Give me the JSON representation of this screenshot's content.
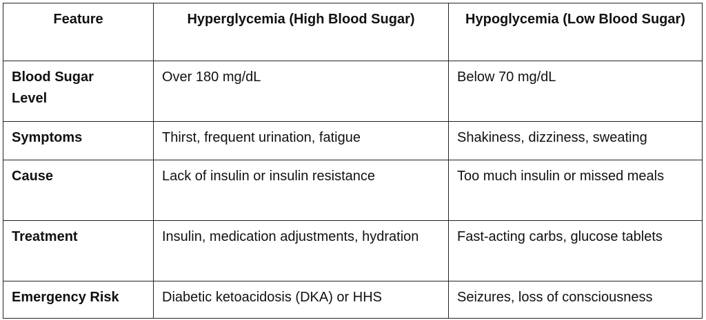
{
  "table": {
    "header": [
      "Feature",
      "Hyperglycemia (High Blood Sugar)",
      "Hypoglycemia (Low Blood Sugar)"
    ],
    "rows": [
      [
        "Blood Sugar Level",
        "Over 180 mg/dL",
        "Below 70 mg/dL"
      ],
      [
        "Symptoms",
        "Thirst, frequent urination, fatigue",
        "Shakiness, dizziness, sweating"
      ],
      [
        "Cause",
        "Lack of insulin or insulin resistance",
        "Too much insulin or missed meals"
      ],
      [
        "Treatment",
        "Insulin, medication adjustments, hydration",
        "Fast-acting carbs, glucose tablets"
      ],
      [
        "Emergency Risk",
        "Diabetic ketoacidosis (DKA) or HHS",
        "Seizures, loss of consciousness"
      ]
    ]
  }
}
